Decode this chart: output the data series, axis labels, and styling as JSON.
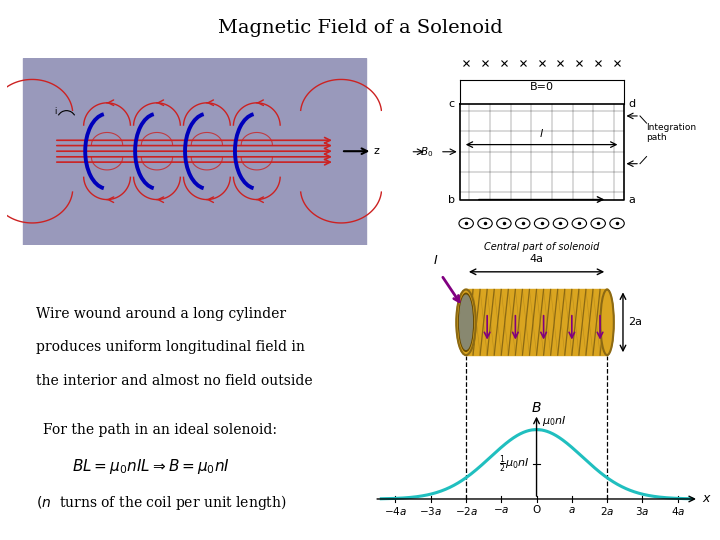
{
  "title": "Magnetic Field of a Solenoid",
  "title_fontsize": 14,
  "background_color": "#ffffff",
  "text_lines_1": [
    "Wire wound around a long cylinder",
    "produces uniform longitudinal field in",
    "the interior and almost no field outside"
  ],
  "solenoid_bg_color": "#9999bb",
  "coil_color": "#DAA520",
  "coil_dark": "#8B6914",
  "curve_color": "#20BFBF",
  "arrow_color": "#800080",
  "dashed_color": "#555555"
}
